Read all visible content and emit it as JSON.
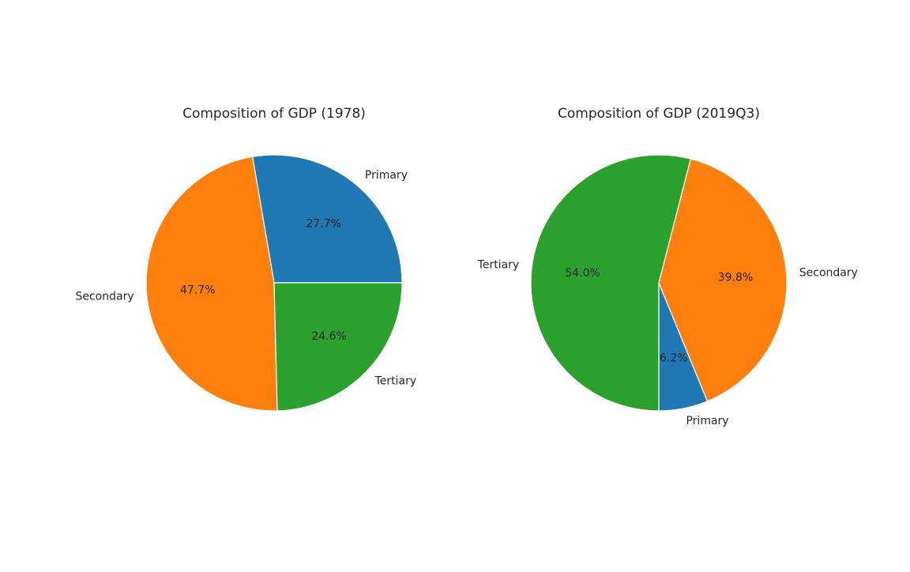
{
  "chart_data": [
    {
      "type": "pie",
      "title": "Composition of GDP (1978)",
      "start_angle": 0,
      "direction": "counterclockwise",
      "slices": [
        {
          "label": "Primary",
          "value": 27.7,
          "pct_label": "27.7%",
          "color": "#1f77b4"
        },
        {
          "label": "Secondary",
          "value": 47.7,
          "pct_label": "47.7%",
          "color": "#ff7f0e"
        },
        {
          "label": "Tertiary",
          "value": 24.6,
          "pct_label": "24.6%",
          "color": "#2ca02c"
        }
      ]
    },
    {
      "type": "pie",
      "title": "Composition of GDP (2019Q3)",
      "start_angle": 270,
      "direction": "counterclockwise",
      "slices": [
        {
          "label": "Primary",
          "value": 6.2,
          "pct_label": "6.2%",
          "color": "#1f77b4"
        },
        {
          "label": "Secondary",
          "value": 39.8,
          "pct_label": "39.8%",
          "color": "#ff7f0e"
        },
        {
          "label": "Tertiary",
          "value": 54.0,
          "pct_label": "54.0%",
          "color": "#2ca02c"
        }
      ]
    }
  ]
}
